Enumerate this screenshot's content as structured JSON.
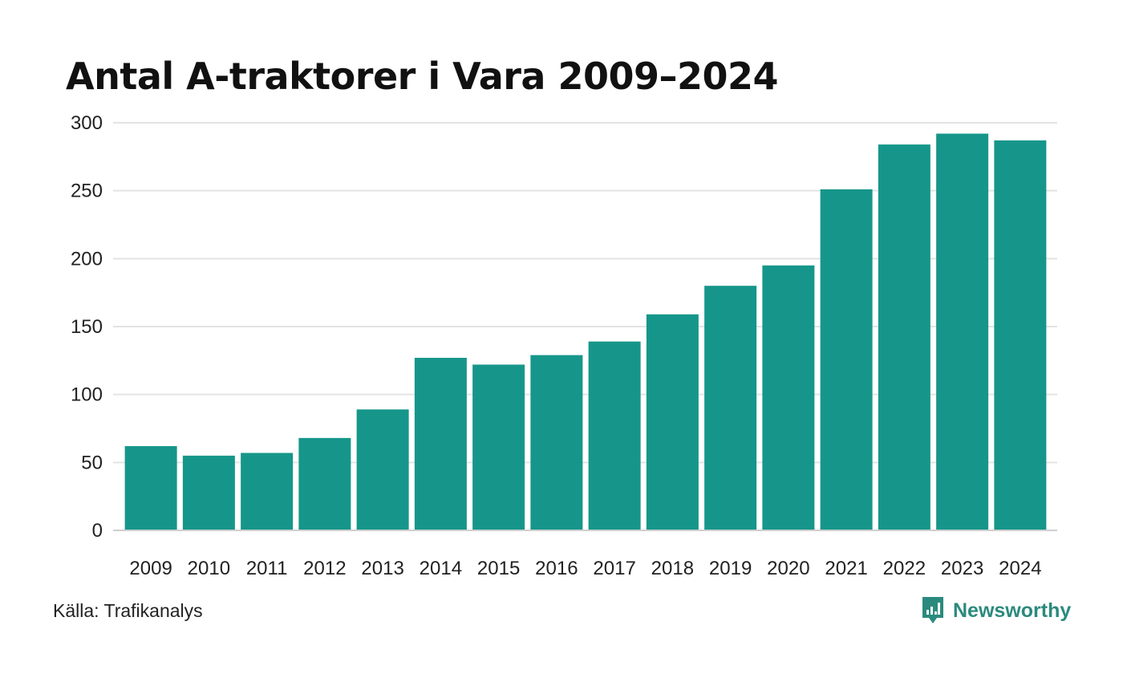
{
  "colors": {
    "bar": "#16968a",
    "grid": "#e3e3e3",
    "axis": "#cfcfcf",
    "text": "#222222",
    "brand": "#2b8a7e"
  },
  "footer": {
    "source": "Källa: Trafikanalys",
    "brand": "Newsworthy",
    "brand_icon": "newsworthy-logo-icon"
  },
  "chart_data": {
    "type": "bar",
    "title": "Antal A-traktorer i Vara 2009–2024",
    "xlabel": "",
    "ylabel": "",
    "categories": [
      "2009",
      "2010",
      "2011",
      "2012",
      "2013",
      "2014",
      "2015",
      "2016",
      "2017",
      "2018",
      "2019",
      "2020",
      "2021",
      "2022",
      "2023",
      "2024"
    ],
    "values": [
      62,
      55,
      57,
      68,
      89,
      127,
      122,
      129,
      139,
      159,
      180,
      195,
      251,
      284,
      292,
      287
    ],
    "ylim": [
      0,
      300
    ],
    "yticks": [
      0,
      50,
      100,
      150,
      200,
      250,
      300
    ],
    "grid": true,
    "legend": "none"
  }
}
